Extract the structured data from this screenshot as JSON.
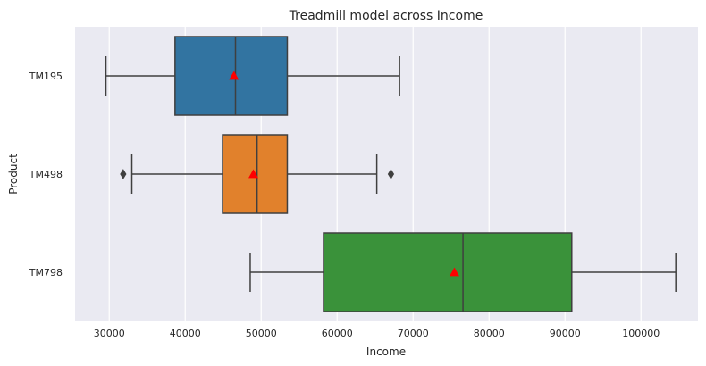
{
  "chart_data": {
    "type": "boxplot",
    "orientation": "horizontal",
    "title": "Treadmill model across Income",
    "xlabel": "Income",
    "ylabel": "Product",
    "xlim": [
      25500,
      107500
    ],
    "xticks": [
      30000,
      40000,
      50000,
      60000,
      70000,
      80000,
      90000,
      100000
    ],
    "grid": true,
    "categories": [
      "TM195",
      "TM498",
      "TM798"
    ],
    "boxes": [
      {
        "category": "TM195",
        "color": "#3274a1",
        "whisker_low": 29562,
        "q1": 38658,
        "median": 46617,
        "q3": 53439,
        "whisker_high": 68220,
        "mean": 46418,
        "outliers": []
      },
      {
        "category": "TM498",
        "color": "#e1812c",
        "whisker_low": 32973,
        "q1": 44911,
        "median": 49459,
        "q3": 53439,
        "whisker_high": 65220,
        "mean": 48973,
        "outliers": [
          31836,
          67083
        ]
      },
      {
        "category": "TM798",
        "color": "#3a923a",
        "whisker_low": 48556,
        "q1": 58204,
        "median": 76568,
        "q3": 90886,
        "whisker_high": 104581,
        "mean": 75441,
        "outliers": []
      }
    ],
    "mean_marker_color": "#ff0000"
  }
}
